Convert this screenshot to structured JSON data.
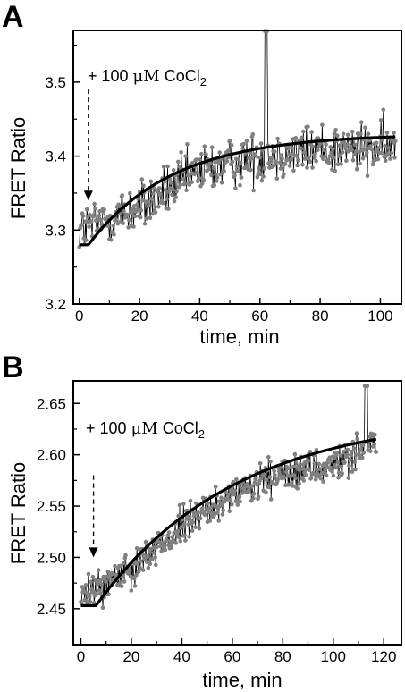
{
  "chart_data": [
    {
      "panel": "A",
      "type": "line",
      "xlabel": "time, min",
      "ylabel": "FRET Ratio",
      "xlim": [
        -2,
        107
      ],
      "ylim": [
        3.2,
        3.57
      ],
      "xticks": [
        0,
        20,
        40,
        60,
        80,
        100
      ],
      "yticks": [
        3.2,
        3.3,
        3.4,
        3.5
      ],
      "xtick_labels": [
        "0",
        "20",
        "40",
        "60",
        "80",
        "100"
      ],
      "ytick_labels": [
        "3.2",
        "3.3",
        "3.4",
        "3.5"
      ],
      "grid": false,
      "annotation": {
        "text_prefix": "+ 100 ",
        "text_unit": "μM",
        "text_compound": " CoCl",
        "text_sub": "2",
        "arrow_x": 3,
        "arrow_from_y": 3.49,
        "arrow_to_y": 3.34
      },
      "series": [
        {
          "kind": "noisy-measurement",
          "color": "#808080",
          "x_start": 0,
          "x_end": 105,
          "n_points": 420,
          "baseline_level": 3.3,
          "baseline_until": 4,
          "approx_y_at": {
            "0": 3.3,
            "20": 3.33,
            "40": 3.38,
            "60": 3.4,
            "80": 3.41,
            "100": 3.41
          },
          "noise_amplitude": 0.04,
          "peak_x": 62,
          "peak_y": 3.57
        },
        {
          "kind": "exponential-fit",
          "color": "#000000",
          "baseline": 3.28,
          "baseline_until": 3,
          "plateau": 3.43,
          "tau": 28,
          "x_end": 105
        }
      ]
    },
    {
      "panel": "B",
      "type": "line",
      "xlabel": "time, min",
      "ylabel": "FRET Ratio",
      "xlim": [
        -3,
        127
      ],
      "ylim": [
        2.415,
        2.672
      ],
      "xticks": [
        0,
        20,
        40,
        60,
        80,
        100,
        120
      ],
      "yticks": [
        2.45,
        2.5,
        2.55,
        2.6,
        2.65
      ],
      "xtick_labels": [
        "0",
        "20",
        "40",
        "60",
        "80",
        "100",
        "120"
      ],
      "ytick_labels": [
        "2.45",
        "2.50",
        "2.55",
        "2.60",
        "2.65"
      ],
      "grid": false,
      "annotation": {
        "text_prefix": "+ 100 ",
        "text_unit": "μM",
        "text_compound": " CoCl",
        "text_sub": "2",
        "arrow_x": 5,
        "arrow_from_y": 2.58,
        "arrow_to_y": 2.5
      },
      "series": [
        {
          "kind": "noisy-measurement",
          "color": "#808080",
          "x_start": 0,
          "x_end": 117,
          "n_points": 470,
          "baseline_level": 2.46,
          "baseline_until": 5,
          "approx_y_at": {
            "0": 2.46,
            "20": 2.49,
            "40": 2.53,
            "60": 2.56,
            "80": 2.58,
            "100": 2.59,
            "115": 2.61
          },
          "noise_amplitude": 0.02,
          "peak_x": 113,
          "peak_y": 2.667
        },
        {
          "kind": "exponential-fit",
          "color": "#000000",
          "baseline": 2.453,
          "baseline_until": 6,
          "plateau": 2.64,
          "tau": 55,
          "x_end": 117
        }
      ]
    }
  ]
}
